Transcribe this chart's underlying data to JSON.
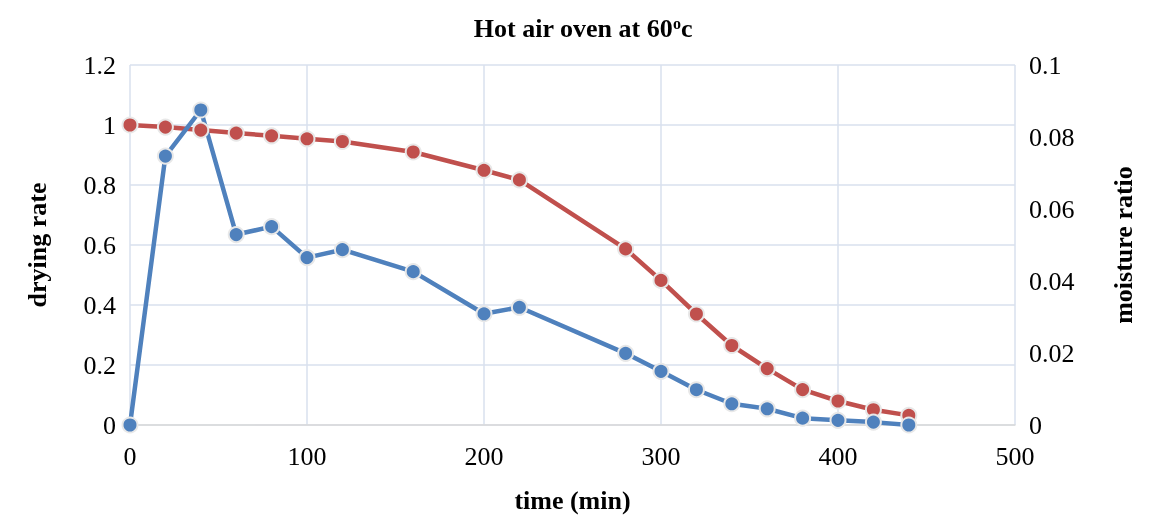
{
  "chart_data": {
    "type": "line",
    "title": "Hot air oven at 60$^{o}$c",
    "xlabel": "time (min)",
    "ylabel": "drying rate",
    "y2label": "moisture ratio",
    "x": [
      0,
      20,
      40,
      60,
      80,
      100,
      120,
      160,
      200,
      220,
      280,
      300,
      320,
      340,
      360,
      380,
      400,
      420,
      440
    ],
    "series": [
      {
        "color": "#c0504d",
        "values": [
          1.0,
          0.993,
          0.983,
          0.973,
          0.964,
          0.954,
          0.945,
          0.91,
          0.849,
          0.817,
          0.587,
          0.482,
          0.37,
          0.265,
          0.188,
          0.118,
          0.08,
          0.051,
          0.032
        ]
      },
      {
        "color": "#4f81bd",
        "axis": "y2",
        "values": [
          0,
          0.0747,
          0.0875,
          0.0529,
          0.0551,
          0.0465,
          0.0487,
          0.0426,
          0.0309,
          0.0327,
          0.0199,
          0.0149,
          0.0098,
          0.0059,
          0.0045,
          0.0019,
          0.0013,
          0.0008,
          0
        ]
      }
    ],
    "xlim": [
      0,
      500
    ],
    "xticks": [
      0,
      100,
      200,
      300,
      400,
      500
    ],
    "ylim": [
      0,
      1.2
    ],
    "yticks": [
      0,
      0.2,
      0.4,
      0.6,
      0.8,
      1,
      1.2
    ],
    "y2lim": [
      0,
      0.1
    ],
    "y2ticks": [
      0,
      0.02,
      0.04,
      0.06,
      0.08,
      0.1
    ],
    "grid": true,
    "marker": "circle",
    "line_style": "solid"
  }
}
